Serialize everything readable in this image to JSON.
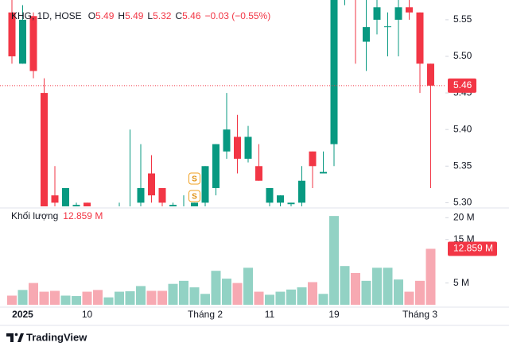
{
  "chart_data": [
    {
      "type": "candlestick",
      "legend": {
        "symbol": "KHG, 1D, HOSE",
        "fields": [
          {
            "key": "O",
            "value": "5.49"
          },
          {
            "key": "H",
            "value": "5.49"
          },
          {
            "key": "L",
            "value": "5.32"
          },
          {
            "key": "C",
            "value": "5.46"
          }
        ],
        "change": "−0.03 (−0.55%)"
      },
      "categories": [
        null,
        "2025",
        null,
        null,
        null,
        null,
        null,
        "10",
        null,
        null,
        null,
        null,
        null,
        null,
        null,
        null,
        null,
        null,
        "Tháng 2",
        null,
        null,
        null,
        null,
        null,
        "11",
        null,
        null,
        null,
        null,
        null,
        "19",
        null,
        null,
        null,
        null,
        null,
        null,
        null,
        "Tháng 3",
        null
      ],
      "open": [
        5.56,
        5.49,
        5.555,
        5.45,
        5.31,
        5.28,
        5.29,
        5.3,
        5.28,
        5.26,
        5.27,
        5.27,
        5.3,
        5.34,
        5.32,
        5.29,
        5.29,
        5.295,
        5.3,
        5.32,
        5.37,
        5.39,
        5.36,
        5.35,
        5.3,
        5.3,
        5.298,
        5.3,
        5.37,
        5.34,
        5.38,
        5.59,
        5.59,
        5.52,
        5.55,
        5.54,
        5.55,
        5.567,
        5.56,
        5.49
      ],
      "high": [
        5.58,
        5.57,
        5.56,
        5.47,
        5.35,
        5.32,
        5.3,
        5.3,
        5.285,
        5.28,
        5.3,
        5.4,
        5.38,
        5.365,
        5.32,
        5.3,
        5.31,
        5.3,
        5.35,
        5.38,
        5.45,
        5.42,
        5.405,
        5.38,
        5.32,
        5.31,
        5.3,
        5.35,
        5.37,
        5.37,
        5.6,
        5.62,
        5.6,
        5.58,
        5.58,
        5.56,
        5.58,
        5.58,
        5.56,
        5.49
      ],
      "low": [
        5.49,
        5.49,
        5.47,
        5.27,
        5.29,
        5.27,
        5.28,
        5.285,
        5.26,
        5.25,
        5.26,
        5.26,
        5.29,
        5.3,
        5.29,
        5.28,
        5.28,
        5.28,
        5.29,
        5.31,
        5.36,
        5.34,
        5.355,
        5.33,
        5.29,
        5.295,
        5.29,
        5.295,
        5.32,
        5.34,
        5.35,
        5.57,
        5.49,
        5.48,
        5.53,
        5.5,
        5.5,
        5.55,
        5.45,
        5.32
      ],
      "close": [
        5.5,
        5.55,
        5.48,
        5.28,
        5.3,
        5.32,
        5.297,
        5.29,
        5.27,
        5.275,
        5.28,
        5.29,
        5.32,
        5.31,
        5.3,
        5.297,
        5.295,
        5.3,
        5.35,
        5.38,
        5.4,
        5.36,
        5.39,
        5.33,
        5.32,
        5.31,
        5.3,
        5.33,
        5.35,
        5.342,
        5.6,
        5.61,
        5.58,
        5.54,
        5.567,
        5.541,
        5.567,
        5.56,
        5.49,
        5.46
      ],
      "up_color": "#089981",
      "down_color": "#f23645",
      "ylim": [
        5.295,
        5.577
      ],
      "yticks": [
        {
          "value": 5.3,
          "label": "5.30"
        },
        5.35,
        {
          "value": 5.4,
          "label": "5.40"
        },
        5.45,
        {
          "value": 5.5,
          "label": "5.50"
        },
        5.55
      ],
      "last_price": 5.46,
      "events": [
        "S",
        "S"
      ]
    },
    {
      "type": "bar",
      "title": "Khối lượng",
      "last_value": {
        "value": 12.859,
        "label": "12.859 M"
      },
      "values": [
        2.1,
        3.4,
        5.0,
        3.0,
        3.2,
        2.1,
        2.0,
        3.0,
        3.4,
        1.7,
        3.0,
        3.1,
        4.3,
        3.2,
        3.2,
        4.8,
        5.5,
        4.0,
        2.5,
        7.8,
        6.0,
        5.0,
        8.5,
        3.0,
        2.3,
        3.0,
        3.5,
        4.0,
        5.2,
        2.5,
        20.4,
        8.9,
        7.3,
        5.5,
        8.5,
        8.5,
        5.8,
        3.0,
        5.5,
        12.859
      ],
      "up_color": "#92d2c4",
      "down_color": "#f7a9b2",
      "ylim": [
        0,
        21.7
      ],
      "yticks": [
        {
          "value": 5,
          "label": "5 M"
        },
        {
          "value": 15,
          "label": "15 M"
        },
        {
          "value": 20,
          "label": "20 M"
        }
      ]
    }
  ],
  "footer": {
    "brand": "TradingView"
  }
}
